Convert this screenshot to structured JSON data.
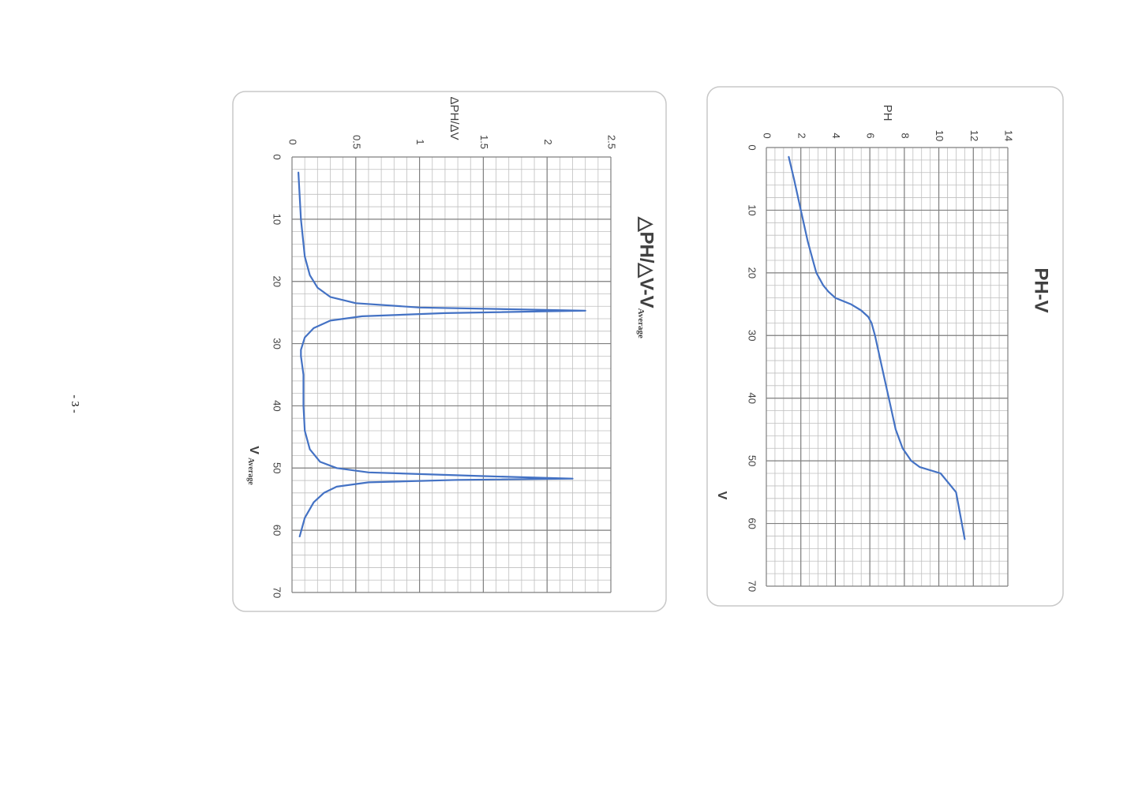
{
  "page": {
    "number": "- 3 -"
  },
  "chart_data": [
    {
      "type": "line",
      "title": "PH-V",
      "xlabel": "V",
      "ylabel": "PH",
      "xlim": [
        0,
        70
      ],
      "ylim": [
        0,
        14
      ],
      "x_ticks": [
        "0",
        "10",
        "20",
        "30",
        "40",
        "50",
        "60",
        "70"
      ],
      "y_ticks": [
        "0",
        "2",
        "4",
        "6",
        "8",
        "10",
        "12",
        "14"
      ],
      "grid": true,
      "rotated": "90deg clockwise",
      "line_color": "#4472c4",
      "series": [
        {
          "x": [
            1.5,
            5,
            10,
            15,
            18,
            20,
            22,
            23,
            24,
            25,
            26,
            27,
            28,
            30,
            35,
            40,
            45,
            48,
            50,
            51,
            52,
            54,
            55,
            58,
            62.5
          ],
          "values": [
            1.3,
            1.6,
            2.0,
            2.4,
            2.7,
            2.9,
            3.3,
            3.6,
            4.0,
            4.9,
            5.5,
            5.9,
            6.1,
            6.3,
            6.7,
            7.1,
            7.5,
            7.9,
            8.4,
            8.9,
            10.1,
            10.7,
            11.0,
            11.2,
            11.5
          ]
        }
      ]
    },
    {
      "type": "line",
      "title": "△PH/△V-V",
      "title_sub": "Average",
      "xlabel": "V",
      "xlabel_sub": "Average",
      "ylabel": "ΔPH/ΔV",
      "xlim": [
        0,
        70
      ],
      "ylim": [
        0,
        2.5
      ],
      "x_ticks": [
        "0",
        "10",
        "20",
        "30",
        "40",
        "50",
        "60",
        "70"
      ],
      "y_ticks": [
        "0",
        "0.5",
        "1",
        "1.5",
        "2",
        "2.5"
      ],
      "grid": true,
      "rotated": "90deg clockwise",
      "line_color": "#4472c4",
      "series": [
        {
          "x": [
            2.5,
            10,
            16,
            19,
            21,
            22.5,
            23.5,
            24.2,
            24.7,
            25.1,
            25.6,
            26.3,
            27.5,
            29,
            31,
            32,
            35,
            40,
            44,
            47,
            49,
            50,
            50.7,
            51.3,
            51.7,
            51.9,
            52.3,
            53,
            54,
            55.5,
            58,
            61
          ],
          "values": [
            0.05,
            0.07,
            0.1,
            0.14,
            0.2,
            0.3,
            0.5,
            1.0,
            2.3,
            1.2,
            0.55,
            0.3,
            0.17,
            0.1,
            0.07,
            0.07,
            0.09,
            0.09,
            0.1,
            0.14,
            0.22,
            0.35,
            0.6,
            1.5,
            2.2,
            1.3,
            0.6,
            0.35,
            0.25,
            0.17,
            0.1,
            0.06
          ]
        }
      ]
    }
  ]
}
